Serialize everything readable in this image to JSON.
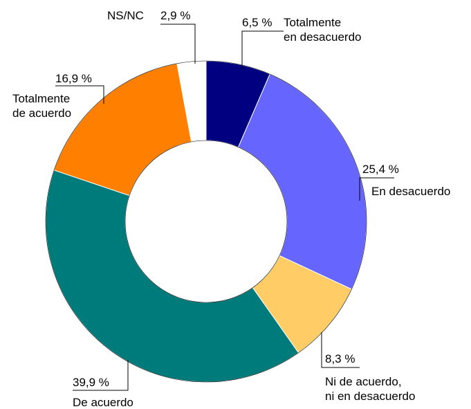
{
  "chart_data": {
    "type": "donut",
    "categories": [
      "Totalmente\nen desacuerdo",
      "En desacuerdo",
      "Ni de acuerdo,\nni en desacuerdo",
      "De acuerdo",
      "Totalmente\nde acuerdo",
      "NS/NC"
    ],
    "values": [
      6.5,
      25.4,
      8.3,
      39.9,
      16.9,
      2.9
    ],
    "value_labels": [
      "6,5 %",
      "25,4 %",
      "8,3 %",
      "39,9 %",
      "16,9 %",
      "2,9 %"
    ],
    "colors": [
      "#000080",
      "#6666ff",
      "#ffcc66",
      "#007b7b",
      "#ff8000",
      "#ffffff"
    ]
  }
}
